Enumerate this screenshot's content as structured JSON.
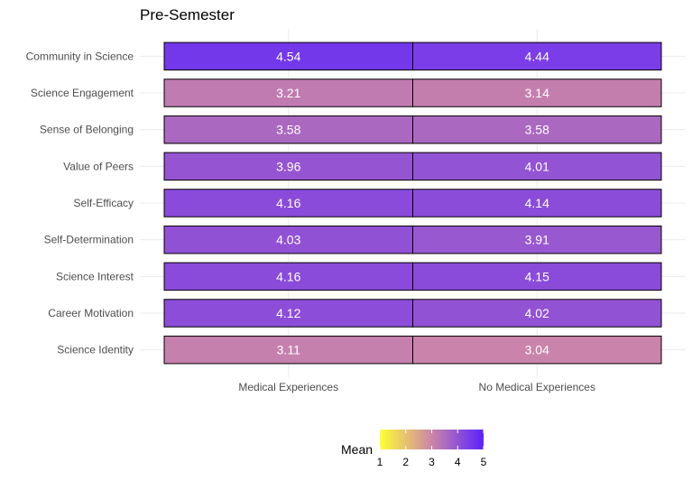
{
  "chart_data": {
    "type": "heatmap",
    "title": "Pre-Semester",
    "xlabel": "",
    "ylabel": "",
    "x_categories": [
      "Medical Experiences",
      "No Medical Experiences"
    ],
    "y_categories": [
      "Community in Science",
      "Science Engagement",
      "Sense of Belonging",
      "Value of Peers",
      "Self-Efficacy",
      "Self-Determination",
      "Science Interest",
      "Career Motivation",
      "Science Identity"
    ],
    "values": [
      [
        4.54,
        4.44
      ],
      [
        3.21,
        3.14
      ],
      [
        3.58,
        3.58
      ],
      [
        3.96,
        4.01
      ],
      [
        4.16,
        4.14
      ],
      [
        4.03,
        3.91
      ],
      [
        4.16,
        4.15
      ],
      [
        4.12,
        4.02
      ],
      [
        3.11,
        3.04
      ]
    ],
    "value_labels": [
      [
        "4.54",
        "4.44"
      ],
      [
        "3.21",
        "3.14"
      ],
      [
        "3.58",
        "3.58"
      ],
      [
        "3.96",
        "4.01"
      ],
      [
        "4.16",
        "4.14"
      ],
      [
        "4.03",
        "3.91"
      ],
      [
        "4.16",
        "4.15"
      ],
      [
        "4.12",
        "4.02"
      ],
      [
        "3.11",
        "3.04"
      ]
    ],
    "color_scale": {
      "title": "Mean",
      "range": [
        1,
        5
      ],
      "ticks": [
        "1",
        "2",
        "3",
        "4",
        "5"
      ],
      "colors": [
        "#ffff33",
        "#cc85a8",
        "#5a21ff"
      ]
    },
    "grid": true,
    "legend_position": "bottom"
  }
}
